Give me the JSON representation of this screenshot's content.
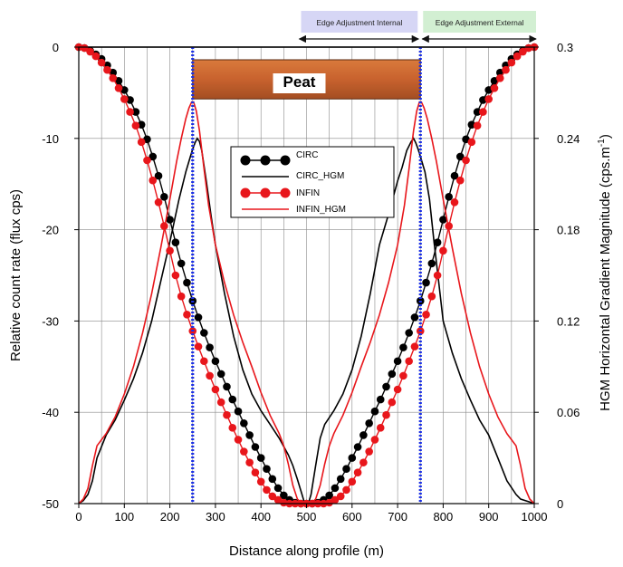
{
  "chart_data": {
    "type": "line",
    "xlabel": "Distance along profile (m)",
    "ylabel_left": "Relative count rate (flux cps)",
    "ylabel_right_main": "HGM Horizontal Gradient Magnitude (cps.m",
    "ylabel_right_sup": "-1",
    "ylabel_right_end": ")",
    "xlim": [
      0,
      1000
    ],
    "ylim_left": [
      -50,
      0
    ],
    "ylim_right": [
      0,
      0.3
    ],
    "x_ticks": [
      "0",
      "100",
      "200",
      "300",
      "400",
      "500",
      "600",
      "700",
      "800",
      "900",
      "1000"
    ],
    "y_left_ticks": [
      "0",
      "-10",
      "-20",
      "-30",
      "-40",
      "-50"
    ],
    "y_right_ticks": [
      "0.3",
      "0.24",
      "0.18",
      "0.12",
      "0.06",
      "0"
    ],
    "grid": true,
    "legend_position": "center-left",
    "colors": {
      "circ": "#000000",
      "infin": "#e8161b",
      "boundary": "#1b2fe6",
      "peat_fill": "#c8622e",
      "internal_box": "#d6d6f5",
      "external_box": "#d2efd2"
    },
    "series": [
      {
        "name": "CIRC",
        "axis": "left",
        "style": "line-markers",
        "x": [
          0,
          12.5,
          25,
          37.5,
          50,
          62.5,
          75,
          87.5,
          100,
          112.5,
          125,
          137.5,
          150,
          162.5,
          175,
          187.5,
          200,
          212.5,
          225,
          237.5,
          250,
          262.5,
          275,
          287.5,
          300,
          312.5,
          325,
          337.5,
          350,
          362.5,
          375,
          387.5,
          400,
          412.5,
          425,
          437.5,
          450,
          462.5,
          475,
          487.5,
          500,
          512.5,
          525,
          537.5,
          550,
          562.5,
          575,
          587.5,
          600,
          612.5,
          625,
          637.5,
          650,
          662.5,
          675,
          687.5,
          700,
          712.5,
          725,
          737.5,
          750,
          762.5,
          775,
          787.5,
          800,
          812.5,
          825,
          837.5,
          850,
          862.5,
          875,
          887.5,
          900,
          912.5,
          925,
          937.5,
          950,
          962.5,
          975,
          987.5,
          1000
        ],
        "y": [
          0,
          -0.1,
          -0.4,
          -0.8,
          -1.3,
          -2.0,
          -2.8,
          -3.7,
          -4.7,
          -5.8,
          -7.1,
          -8.5,
          -10.1,
          -12.0,
          -14.1,
          -16.4,
          -18.9,
          -21.4,
          -23.7,
          -25.8,
          -27.8,
          -29.6,
          -31.3,
          -32.9,
          -34.4,
          -35.8,
          -37.2,
          -38.6,
          -39.9,
          -41.2,
          -42.5,
          -43.8,
          -45.0,
          -46.2,
          -47.3,
          -48.3,
          -49.1,
          -49.6,
          -49.9,
          -50.0,
          -50.0,
          -50.0,
          -49.9,
          -49.6,
          -49.1,
          -48.3,
          -47.3,
          -46.2,
          -45.0,
          -43.8,
          -42.5,
          -41.2,
          -39.9,
          -38.6,
          -37.2,
          -35.8,
          -34.4,
          -32.9,
          -31.3,
          -29.6,
          -27.8,
          -25.8,
          -23.7,
          -21.4,
          -18.9,
          -16.4,
          -14.1,
          -12.0,
          -10.1,
          -8.5,
          -7.1,
          -5.8,
          -4.7,
          -3.7,
          -2.8,
          -2.0,
          -1.3,
          -0.8,
          -0.4,
          -0.1,
          0
        ]
      },
      {
        "name": "CIRC_HGM",
        "axis": "right",
        "style": "line",
        "x": [
          0,
          10,
          20,
          30,
          40,
          60,
          80,
          100,
          120,
          140,
          160,
          180,
          200,
          220,
          235,
          245,
          250,
          255,
          260,
          265,
          270,
          280,
          290,
          300,
          320,
          340,
          360,
          380,
          400,
          420,
          440,
          460,
          470,
          480,
          490,
          495,
          500,
          505,
          510,
          520,
          530,
          540,
          560,
          580,
          600,
          620,
          640,
          660,
          680,
          700,
          710,
          720,
          730,
          735,
          740,
          745,
          750,
          760,
          770,
          780,
          790,
          800,
          820,
          840,
          860,
          880,
          900,
          920,
          940,
          960,
          970,
          980,
          990,
          1000
        ],
        "y": [
          0,
          0.002,
          0.006,
          0.015,
          0.03,
          0.045,
          0.055,
          0.068,
          0.082,
          0.099,
          0.12,
          0.146,
          0.172,
          0.2,
          0.218,
          0.228,
          0.233,
          0.237,
          0.24,
          0.238,
          0.232,
          0.212,
          0.19,
          0.17,
          0.138,
          0.11,
          0.088,
          0.072,
          0.061,
          0.052,
          0.043,
          0.032,
          0.025,
          0.016,
          0.006,
          0.001,
          0.0,
          0.001,
          0.006,
          0.025,
          0.043,
          0.052,
          0.061,
          0.072,
          0.088,
          0.11,
          0.138,
          0.17,
          0.19,
          0.212,
          0.221,
          0.232,
          0.238,
          0.24,
          0.237,
          0.233,
          0.228,
          0.218,
          0.2,
          0.172,
          0.146,
          0.12,
          0.099,
          0.082,
          0.068,
          0.055,
          0.045,
          0.03,
          0.015,
          0.006,
          0.003,
          0.002,
          0.001,
          0
        ]
      },
      {
        "name": "INFIN",
        "axis": "left",
        "style": "line-markers",
        "x": [
          0,
          12.5,
          25,
          37.5,
          50,
          62.5,
          75,
          87.5,
          100,
          112.5,
          125,
          137.5,
          150,
          162.5,
          175,
          187.5,
          200,
          212.5,
          225,
          237.5,
          250,
          262.5,
          275,
          287.5,
          300,
          312.5,
          325,
          337.5,
          350,
          362.5,
          375,
          387.5,
          400,
          412.5,
          425,
          437.5,
          450,
          462.5,
          475,
          487.5,
          500,
          512.5,
          525,
          537.5,
          550,
          562.5,
          575,
          587.5,
          600,
          612.5,
          625,
          637.5,
          650,
          662.5,
          675,
          687.5,
          700,
          712.5,
          725,
          737.5,
          750,
          762.5,
          775,
          787.5,
          800,
          812.5,
          825,
          837.5,
          850,
          862.5,
          875,
          887.5,
          900,
          912.5,
          925,
          937.5,
          950,
          962.5,
          975,
          987.5,
          1000
        ],
        "y": [
          0,
          -0.1,
          -0.5,
          -1.0,
          -1.7,
          -2.5,
          -3.4,
          -4.5,
          -5.7,
          -7.1,
          -8.6,
          -10.4,
          -12.4,
          -14.6,
          -17.0,
          -19.6,
          -22.3,
          -25.0,
          -27.3,
          -29.3,
          -31.1,
          -32.8,
          -34.4,
          -36.0,
          -37.5,
          -38.9,
          -40.3,
          -41.7,
          -43.0,
          -44.3,
          -45.5,
          -46.6,
          -47.6,
          -48.5,
          -49.2,
          -49.6,
          -49.9,
          -50.0,
          -50.0,
          -50.0,
          -50.0,
          -50.0,
          -50.0,
          -50.0,
          -49.9,
          -49.6,
          -49.2,
          -48.5,
          -47.6,
          -46.6,
          -45.5,
          -44.3,
          -43.0,
          -41.7,
          -40.3,
          -38.9,
          -37.5,
          -36.0,
          -34.4,
          -32.8,
          -31.1,
          -29.3,
          -27.3,
          -25.0,
          -22.3,
          -19.6,
          -17.0,
          -14.6,
          -12.4,
          -10.4,
          -8.6,
          -7.1,
          -5.7,
          -4.5,
          -3.4,
          -2.5,
          -1.7,
          -1.0,
          -0.5,
          -0.1,
          0
        ]
      },
      {
        "name": "INFIN_HGM",
        "axis": "right",
        "style": "line",
        "x": [
          0,
          10,
          20,
          30,
          40,
          50,
          60,
          80,
          100,
          120,
          140,
          160,
          180,
          200,
          215,
          225,
          235,
          242,
          248,
          252,
          258,
          265,
          275,
          285,
          300,
          320,
          340,
          360,
          380,
          400,
          420,
          440,
          450,
          460,
          470,
          480,
          490,
          500,
          510,
          520,
          530,
          540,
          550,
          560,
          580,
          600,
          620,
          640,
          660,
          680,
          700,
          715,
          725,
          735,
          742,
          748,
          752,
          758,
          765,
          775,
          785,
          800,
          820,
          840,
          860,
          880,
          900,
          920,
          940,
          950,
          960,
          970,
          980,
          990,
          1000
        ],
        "y": [
          0,
          0.003,
          0.01,
          0.025,
          0.038,
          0.042,
          0.046,
          0.057,
          0.072,
          0.09,
          0.112,
          0.138,
          0.168,
          0.2,
          0.225,
          0.24,
          0.253,
          0.26,
          0.264,
          0.264,
          0.258,
          0.245,
          0.22,
          0.196,
          0.17,
          0.145,
          0.124,
          0.106,
          0.09,
          0.073,
          0.058,
          0.046,
          0.038,
          0.026,
          0.012,
          0.003,
          0.0,
          0.0,
          0.0,
          0.003,
          0.012,
          0.026,
          0.038,
          0.046,
          0.058,
          0.073,
          0.09,
          0.106,
          0.124,
          0.145,
          0.17,
          0.196,
          0.22,
          0.245,
          0.258,
          0.264,
          0.264,
          0.26,
          0.253,
          0.24,
          0.225,
          0.2,
          0.168,
          0.138,
          0.112,
          0.09,
          0.072,
          0.057,
          0.046,
          0.042,
          0.038,
          0.025,
          0.01,
          0.003,
          0
        ]
      }
    ],
    "boundaries": [
      250,
      750
    ],
    "peat_label": "Peat",
    "peat_range": [
      250,
      750
    ],
    "peat_depth": [
      0,
      -3
    ],
    "annotations": {
      "internal": "Edge Adjustment Internal",
      "external": "Edge Adjustment External",
      "internal_range": [
        500,
        750
      ],
      "external_range": [
        750,
        1000
      ]
    }
  }
}
